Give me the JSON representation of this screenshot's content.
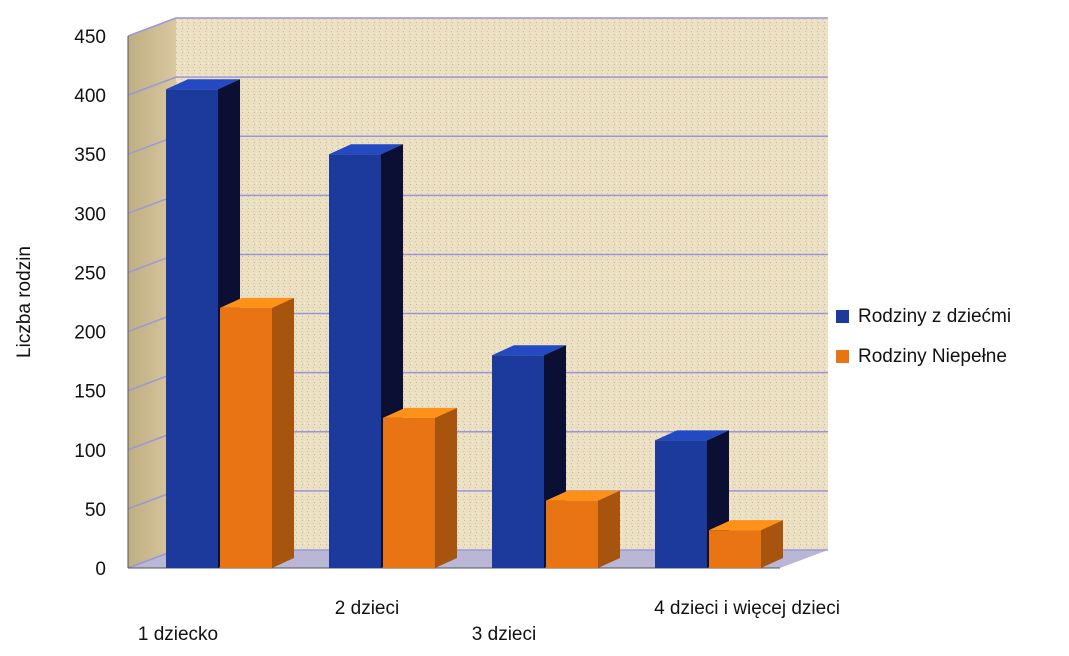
{
  "chart_data": {
    "type": "bar",
    "title": "",
    "xlabel": "",
    "ylabel": "Liczba rodzin",
    "ylim": [
      0,
      450
    ],
    "yticks": [
      0,
      50,
      100,
      150,
      200,
      250,
      300,
      350,
      400,
      450
    ],
    "categories": [
      "1 dziecko",
      "2 dzieci",
      "3 dzieci",
      "4 dzieci i więcej dzieci"
    ],
    "series": [
      {
        "name": "Rodziny z dziećmi",
        "values": [
          405,
          350,
          180,
          108
        ],
        "color": "#1c3a9c"
      },
      {
        "name": "Rodziny Niepełne",
        "values": [
          220,
          127,
          57,
          32
        ],
        "color": "#e87414"
      }
    ],
    "grid": true,
    "legend_position": "right",
    "style": "3d"
  }
}
